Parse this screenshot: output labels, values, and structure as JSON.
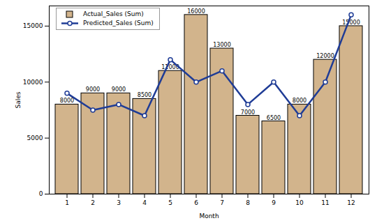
{
  "chart_data": {
    "type": "bar",
    "x_label": "Month",
    "y_label": "Sales",
    "categories": [
      "1",
      "2",
      "3",
      "4",
      "5",
      "6",
      "7",
      "8",
      "9",
      "10",
      "11",
      "12"
    ],
    "series": [
      {
        "name": "Actual_Sales (Sum)",
        "type": "bar",
        "color": "#d2b48c",
        "data_labels": true,
        "values": [
          8000,
          9000,
          9000,
          8500,
          11000,
          16000,
          13000,
          7000,
          6500,
          8000,
          12000,
          15000
        ]
      },
      {
        "name": "Predicted_Sales (Sum)",
        "type": "line",
        "marker": "circle",
        "color": "#1f3c96",
        "values": [
          9000,
          7500,
          8000,
          7000,
          12000,
          10000,
          11000,
          8000,
          10000,
          7000,
          10000,
          16000
        ]
      }
    ],
    "ylim": [
      0,
      16800
    ],
    "yticks": [
      0,
      5000,
      10000,
      15000
    ],
    "legend": "top-left"
  }
}
